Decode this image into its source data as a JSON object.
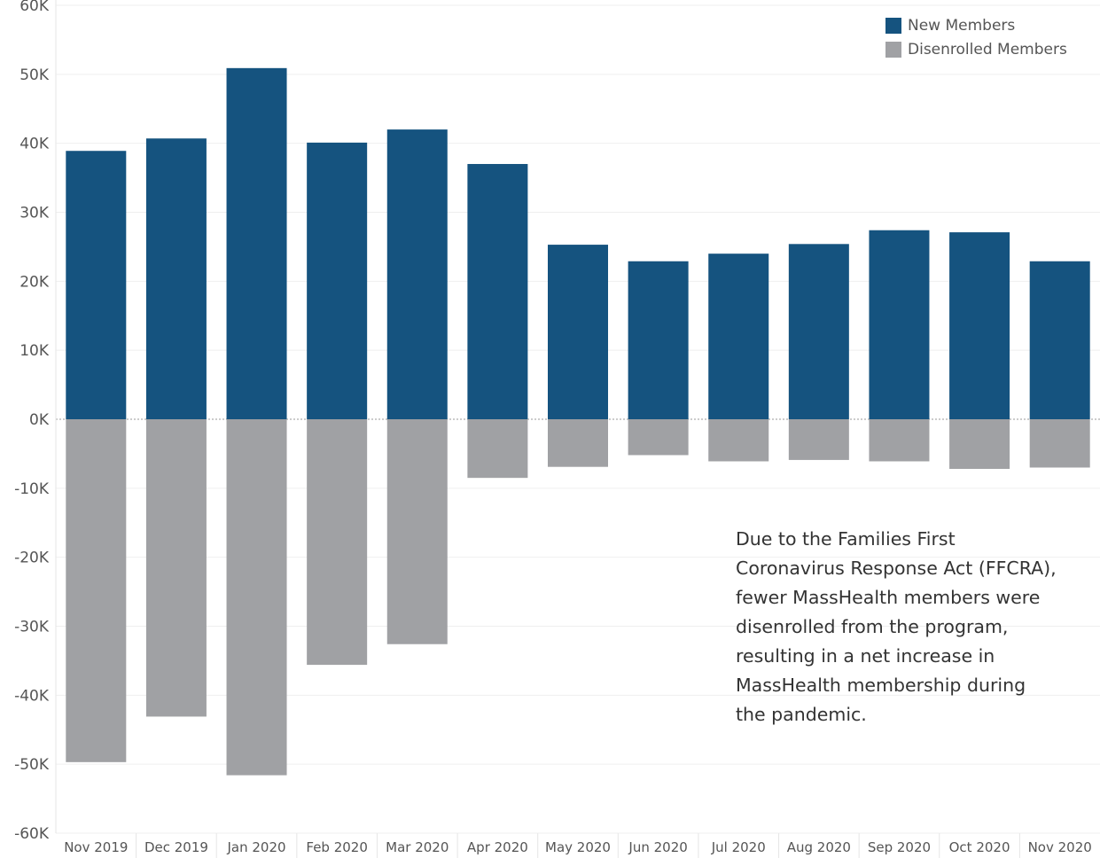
{
  "chart_data": {
    "type": "bar",
    "categories": [
      "Nov 2019",
      "Dec 2019",
      "Jan 2020",
      "Feb 2020",
      "Mar 2020",
      "Apr 2020",
      "May 2020",
      "Jun 2020",
      "Jul 2020",
      "Aug 2020",
      "Sep 2020",
      "Oct 2020",
      "Nov 2020"
    ],
    "series": [
      {
        "name": "New Members",
        "color": "#15537f",
        "values": [
          38900,
          40700,
          50900,
          40100,
          42000,
          37000,
          25300,
          22900,
          24000,
          25400,
          27400,
          27100,
          22900
        ]
      },
      {
        "name": "Disenrolled Members",
        "color": "#a0a1a4",
        "values": [
          -49700,
          -43100,
          -51600,
          -35600,
          -32600,
          -8500,
          -6900,
          -5200,
          -6100,
          -5900,
          -6100,
          -7200,
          -7000
        ]
      }
    ],
    "title": "",
    "xlabel": "",
    "ylabel": "",
    "ylim": [
      -60000,
      60000
    ],
    "yticks": [
      60000,
      50000,
      40000,
      30000,
      20000,
      10000,
      0,
      -10000,
      -20000,
      -30000,
      -40000,
      -50000,
      -60000
    ],
    "ytick_labels": [
      "60K",
      "50K",
      "40K",
      "30K",
      "20K",
      "10K",
      "0K",
      "-10K",
      "-20K",
      "-30K",
      "-40K",
      "-50K",
      "-60K"
    ],
    "grid": true,
    "stacked": true,
    "legend_position": "top-right",
    "annotation": "Due to the Families First\nCoronavirus Response Act (FFCRA),\nfewer MassHealth members were\ndisenrolled from the program,\nresulting in a net increase in\nMassHealth membership during\nthe pandemic."
  }
}
